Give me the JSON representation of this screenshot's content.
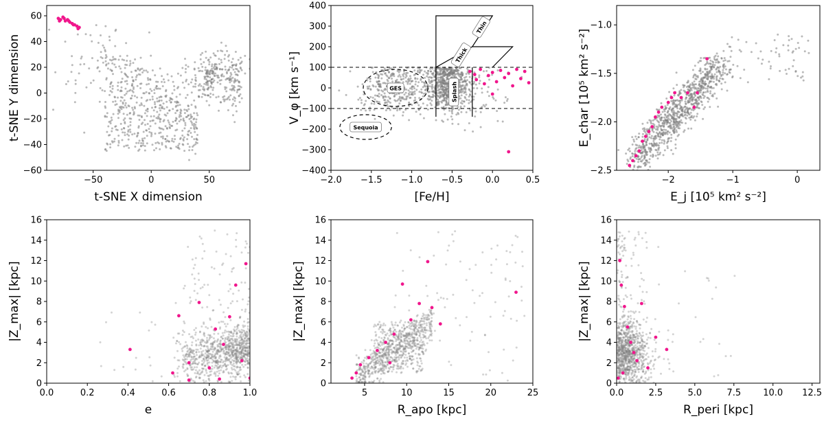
{
  "colors": {
    "background": "#808080",
    "highlight": "#f0168c",
    "axis": "#000000"
  },
  "chart_data": [
    {
      "type": "scatter",
      "xlabel": "t-SNE X dimension",
      "ylabel": "t-SNE Y dimension",
      "xlim": [
        -90,
        85
      ],
      "ylim": [
        -60,
        68
      ],
      "xticks": [
        -50,
        0,
        50
      ],
      "yticks": [
        -60,
        -40,
        -20,
        0,
        20,
        40,
        60
      ],
      "xtick_labels": [
        "−50",
        "0",
        "50"
      ],
      "ytick_labels": [
        "−60",
        "−40",
        "−20",
        "0",
        "20",
        "40",
        "60"
      ],
      "highlight_points": [
        [
          -80,
          58
        ],
        [
          -78,
          57
        ],
        [
          -76,
          59
        ],
        [
          -74,
          56
        ],
        [
          -72,
          57
        ],
        [
          -70,
          55
        ],
        [
          -68,
          54
        ],
        [
          -66,
          53
        ],
        [
          -64,
          52
        ],
        [
          -62,
          51
        ],
        [
          -79,
          56
        ],
        [
          -75,
          58
        ],
        [
          -71,
          56
        ],
        [
          -67,
          53
        ],
        [
          -63,
          50
        ]
      ]
    },
    {
      "type": "scatter",
      "xlabel": "[Fe/H]",
      "ylabel": "V_φ [km s⁻¹]",
      "xlim": [
        -2.0,
        0.5
      ],
      "ylim": [
        -400,
        400
      ],
      "xticks": [
        -2.0,
        -1.5,
        -1.0,
        -0.5,
        0.0,
        0.5
      ],
      "yticks": [
        -400,
        -300,
        -200,
        -100,
        0,
        100,
        200,
        300,
        400
      ],
      "xtick_labels": [
        "−2.0",
        "−1.5",
        "−1.0",
        "−0.5",
        "0.0",
        "0.5"
      ],
      "ytick_labels": [
        "−400",
        "−300",
        "−200",
        "−100",
        "0",
        "100",
        "200",
        "300",
        "400"
      ],
      "annotations": [
        "Thin",
        "Thick",
        "GES",
        "Splash",
        "Sequoia"
      ],
      "highlight_points": [
        [
          -0.28,
          80
        ],
        [
          -0.2,
          40
        ],
        [
          -0.15,
          90
        ],
        [
          -0.1,
          20
        ],
        [
          -0.05,
          60
        ],
        [
          0.0,
          75
        ],
        [
          0.05,
          30
        ],
        [
          0.1,
          85
        ],
        [
          0.15,
          50
        ],
        [
          0.2,
          70
        ],
        [
          0.25,
          10
        ],
        [
          0.3,
          90
        ],
        [
          0.35,
          45
        ],
        [
          0.4,
          80
        ],
        [
          0.45,
          25
        ],
        [
          -0.22,
          65
        ],
        [
          0.0,
          -30
        ],
        [
          0.2,
          -310
        ]
      ]
    },
    {
      "type": "scatter",
      "xlabel": "E_j [10⁵ km² s⁻²]",
      "ylabel": "E_char [10⁵ km² s⁻²]",
      "xlim": [
        -2.8,
        0.35
      ],
      "ylim": [
        -2.5,
        -0.8
      ],
      "xticks": [
        -2,
        -1,
        0
      ],
      "yticks": [
        -2.5,
        -2.0,
        -1.5,
        -1.0
      ],
      "xtick_labels": [
        "−2",
        "−1",
        "0"
      ],
      "ytick_labels": [
        "−2.5",
        "−2.0",
        "−1.5",
        "−1.0"
      ],
      "highlight_points": [
        [
          -2.6,
          -2.45
        ],
        [
          -2.55,
          -2.4
        ],
        [
          -2.5,
          -2.35
        ],
        [
          -2.45,
          -2.3
        ],
        [
          -2.4,
          -2.2
        ],
        [
          -2.35,
          -2.15
        ],
        [
          -2.3,
          -2.1
        ],
        [
          -2.25,
          -2.05
        ],
        [
          -2.2,
          -1.95
        ],
        [
          -2.15,
          -1.9
        ],
        [
          -2.1,
          -1.85
        ],
        [
          -2.0,
          -1.8
        ],
        [
          -1.95,
          -1.75
        ],
        [
          -1.9,
          -1.7
        ],
        [
          -1.8,
          -1.75
        ],
        [
          -1.7,
          -1.7
        ],
        [
          -1.6,
          -1.85
        ],
        [
          -1.55,
          -1.7
        ],
        [
          -1.4,
          -1.35
        ]
      ]
    },
    {
      "type": "scatter",
      "xlabel": "e",
      "ylabel": "|Z_max| [kpc]",
      "xlim": [
        0.0,
        1.0
      ],
      "ylim": [
        0,
        16
      ],
      "xticks": [
        0.0,
        0.2,
        0.4,
        0.6,
        0.8,
        1.0
      ],
      "yticks": [
        0,
        2,
        4,
        6,
        8,
        10,
        12,
        14,
        16
      ],
      "xtick_labels": [
        "0.0",
        "0.2",
        "0.4",
        "0.6",
        "0.8",
        "1.0"
      ],
      "ytick_labels": [
        "0",
        "2",
        "4",
        "6",
        "8",
        "10",
        "12",
        "14",
        "16"
      ],
      "highlight_points": [
        [
          0.41,
          3.3
        ],
        [
          0.62,
          1.0
        ],
        [
          0.65,
          6.6
        ],
        [
          0.7,
          2.0
        ],
        [
          0.75,
          7.9
        ],
        [
          0.8,
          1.5
        ],
        [
          0.83,
          5.3
        ],
        [
          0.87,
          3.8
        ],
        [
          0.9,
          6.5
        ],
        [
          0.93,
          9.6
        ],
        [
          0.96,
          2.2
        ],
        [
          0.98,
          11.7
        ],
        [
          1.0,
          0.5
        ],
        [
          0.85,
          0.4
        ],
        [
          0.7,
          0.3
        ]
      ]
    },
    {
      "type": "scatter",
      "xlabel": "R_apo [kpc]",
      "ylabel": "|Z_max| [kpc]",
      "xlim": [
        1,
        25
      ],
      "ylim": [
        0,
        16
      ],
      "xticks": [
        5,
        10,
        15,
        20,
        25
      ],
      "yticks": [
        0,
        2,
        4,
        6,
        8,
        10,
        12,
        14,
        16
      ],
      "xtick_labels": [
        "5",
        "10",
        "15",
        "20",
        "25"
      ],
      "ytick_labels": [
        "0",
        "2",
        "4",
        "6",
        "8",
        "10",
        "12",
        "14",
        "16"
      ],
      "highlight_points": [
        [
          3.5,
          0.5
        ],
        [
          4.0,
          1.0
        ],
        [
          4.5,
          1.8
        ],
        [
          5.5,
          2.5
        ],
        [
          6.5,
          3.2
        ],
        [
          7.5,
          4.0
        ],
        [
          8.5,
          4.8
        ],
        [
          9.5,
          9.7
        ],
        [
          10.5,
          6.2
        ],
        [
          11.5,
          7.8
        ],
        [
          12.5,
          11.9
        ],
        [
          13.0,
          7.4
        ],
        [
          14.0,
          5.8
        ],
        [
          23.0,
          8.9
        ],
        [
          8.0,
          2.0
        ]
      ]
    },
    {
      "type": "scatter",
      "xlabel": "R_peri [kpc]",
      "ylabel": "|Z_max| [kpc]",
      "xlim": [
        0.0,
        13.0
      ],
      "ylim": [
        0,
        16
      ],
      "xticks": [
        0.0,
        2.5,
        5.0,
        7.5,
        10.0,
        12.5
      ],
      "yticks": [
        0,
        2,
        4,
        6,
        8,
        10,
        12,
        14,
        16
      ],
      "xtick_labels": [
        "0.0",
        "2.5",
        "5.0",
        "7.5",
        "10.0",
        "12.5"
      ],
      "ytick_labels": [
        "0",
        "2",
        "4",
        "6",
        "8",
        "10",
        "12",
        "14",
        "16"
      ],
      "highlight_points": [
        [
          0.1,
          0.5
        ],
        [
          0.2,
          12.0
        ],
        [
          0.3,
          9.6
        ],
        [
          0.5,
          7.5
        ],
        [
          0.7,
          5.5
        ],
        [
          0.9,
          4.0
        ],
        [
          1.1,
          3.0
        ],
        [
          1.3,
          2.2
        ],
        [
          1.6,
          7.8
        ],
        [
          2.0,
          1.5
        ],
        [
          2.5,
          4.5
        ],
        [
          3.2,
          3.3
        ],
        [
          0.4,
          1.0
        ]
      ]
    }
  ]
}
